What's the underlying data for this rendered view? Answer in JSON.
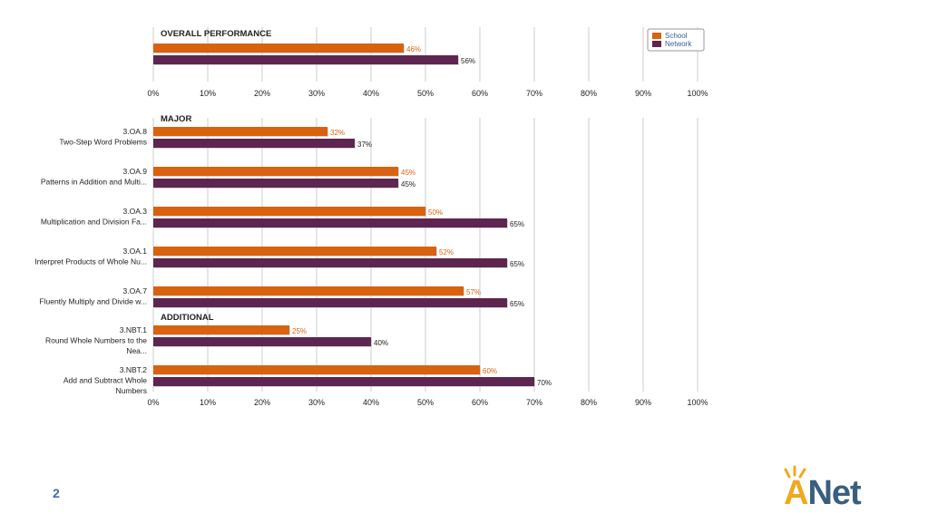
{
  "page": {
    "number": "2"
  },
  "logo": {
    "text_a": "A",
    "text_net": "Net"
  },
  "colors": {
    "school": "#d9620f",
    "network": "#5e2550",
    "grid": "#cccccc",
    "text": "#222222"
  },
  "chart_data": {
    "type": "bar",
    "orientation": "horizontal",
    "xlim": [
      0,
      100
    ],
    "x_ticks": [
      "0%",
      "10%",
      "20%",
      "30%",
      "40%",
      "50%",
      "60%",
      "70%",
      "80%",
      "90%",
      "100%"
    ],
    "legend": {
      "position": "top-right",
      "entries": [
        "School",
        "Network"
      ]
    },
    "grid": true,
    "series_names": [
      "School",
      "Network"
    ],
    "panels": [
      {
        "title": "OVERALL PERFORMANCE",
        "groups": [
          {
            "code": "",
            "name": "",
            "values": [
              46,
              56
            ],
            "labels": [
              "46%",
              "56%"
            ]
          }
        ]
      },
      {
        "title": "MAJOR",
        "groups": [
          {
            "code": "3.OA.8",
            "name": "Two-Step Word Problems",
            "values": [
              32,
              37
            ],
            "labels": [
              "32%",
              "37%"
            ]
          },
          {
            "code": "3.OA.9",
            "name": "Patterns in Addition and Multi...",
            "values": [
              45,
              45
            ],
            "labels": [
              "45%",
              "45%"
            ]
          },
          {
            "code": "3.OA.3",
            "name": "Multiplication and Division Fa...",
            "values": [
              50,
              65
            ],
            "labels": [
              "50%",
              "65%"
            ]
          },
          {
            "code": "3.OA.1",
            "name": "Interpret Products of Whole Nu...",
            "values": [
              52,
              65
            ],
            "labels": [
              "52%",
              "65%"
            ]
          },
          {
            "code": "3.OA.7",
            "name": "Fluently Multiply and Divide w...",
            "values": [
              57,
              65
            ],
            "labels": [
              "57%",
              "65%"
            ]
          }
        ],
        "section_label": "ADDITIONAL"
      },
      {
        "title": "",
        "groups": [
          {
            "code": "3.NBT.1",
            "name": "Round Whole Numbers to the Nea...",
            "values": [
              25,
              40
            ],
            "labels": [
              "25%",
              "40%"
            ]
          },
          {
            "code": "3.NBT.2",
            "name": "Add and Subtract Whole Numbers",
            "values": [
              60,
              70
            ],
            "labels": [
              "60%",
              "70%"
            ]
          }
        ]
      }
    ]
  }
}
